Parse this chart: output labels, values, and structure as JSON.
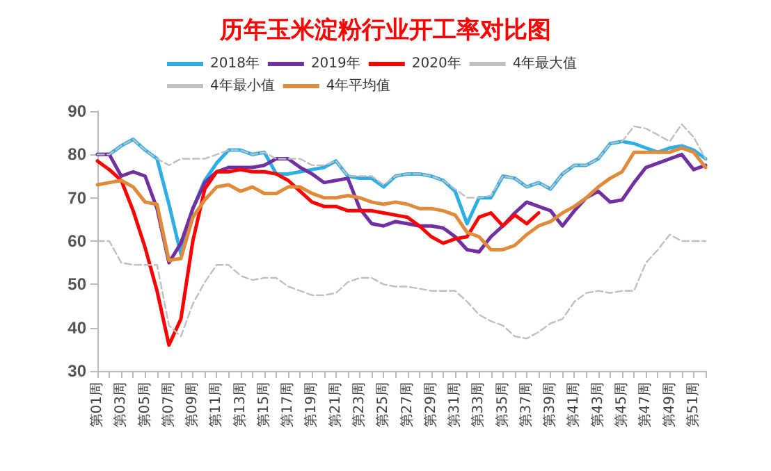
{
  "chart_data": {
    "type": "line",
    "title": "历年玉米淀粉行业开工率对比图",
    "categories": [
      "第01周",
      null,
      "第03周",
      null,
      "第05周",
      null,
      "第07周",
      null,
      "第09周",
      null,
      "第11周",
      null,
      "第13周",
      null,
      "第15周",
      null,
      "第17周",
      null,
      "第19周",
      null,
      "第21周",
      null,
      "第23周",
      null,
      "第25周",
      null,
      "第27周",
      null,
      "第29周",
      null,
      "第31周",
      null,
      "第33周",
      null,
      "第35周",
      null,
      "第37周",
      null,
      "第39周",
      null,
      "第41周",
      null,
      "第43周",
      null,
      "第45周",
      null,
      "第47周",
      null,
      "第49周",
      null,
      "第51周",
      null
    ],
    "series": [
      {
        "name": "2018年",
        "color": "#2eaee6",
        "line_style": "solid",
        "values": [
          80,
          80,
          82,
          83.5,
          81,
          79,
          68.5,
          57,
          67.5,
          74,
          78,
          81,
          81,
          80,
          80.5,
          75.5,
          75.5,
          76,
          76.5,
          77,
          78.5,
          75,
          74.5,
          74.5,
          72.5,
          75,
          75.5,
          75.5,
          75,
          74,
          71.5,
          64,
          70,
          70,
          75,
          74.5,
          72.5,
          73.5,
          72,
          75.5,
          77.5,
          77.5,
          79,
          82.5,
          83,
          82.5,
          81.5,
          80.5,
          81.5,
          82,
          81,
          79
        ]
      },
      {
        "name": "2019年",
        "color": "#7030a0",
        "line_style": "solid",
        "values": [
          80,
          80,
          75,
          76,
          75,
          67.5,
          55,
          59.5,
          67.5,
          73.5,
          76,
          77,
          77,
          77,
          77.5,
          79,
          79,
          77,
          75.5,
          73.5,
          74,
          74.5,
          67.5,
          64,
          63.5,
          64.5,
          64,
          63.5,
          63.5,
          63,
          61,
          58,
          57.5,
          61,
          63.5,
          66.5,
          69,
          68,
          67,
          63.5,
          67,
          70,
          71.5,
          69,
          69.5,
          73.5,
          77,
          78,
          79,
          80,
          76.5,
          77.5
        ]
      },
      {
        "name": "2020年",
        "color": "#ff0000",
        "line_style": "solid",
        "values": [
          78.5,
          76.5,
          74,
          67,
          58.5,
          48.5,
          36,
          42,
          60,
          72,
          76,
          76,
          76.5,
          76,
          76,
          75.5,
          74,
          71.5,
          69,
          68,
          68,
          67,
          67,
          67,
          66.5,
          66,
          65.5,
          63.5,
          61,
          59.5,
          60.5,
          61,
          65.5,
          66.5,
          63.5,
          66,
          64,
          66.5,
          null,
          null,
          null,
          null,
          null,
          null,
          null,
          null,
          null,
          null,
          null,
          null,
          null,
          null
        ]
      },
      {
        "name": "4年最大值",
        "color": "#bfbfbf",
        "line_style": "dashed",
        "values": [
          80,
          80,
          82,
          83.5,
          81,
          79,
          77.5,
          79,
          79,
          79,
          80,
          81,
          81,
          80,
          80.5,
          79,
          79,
          79,
          77.5,
          77.5,
          78.5,
          75,
          75,
          75,
          73,
          75,
          75.5,
          75.5,
          75,
          74,
          72,
          70,
          70,
          70.5,
          75,
          74.5,
          72.5,
          73.5,
          72,
          75.5,
          77.5,
          77.5,
          79,
          82.5,
          83,
          86.5,
          86,
          84.5,
          83,
          87,
          84,
          79
        ]
      },
      {
        "name": "4年最小值",
        "color": "#bfbfbf",
        "line_style": "dashed",
        "values": [
          60,
          60,
          55,
          54.5,
          54.5,
          54.5,
          40.5,
          38,
          45.5,
          50.5,
          54.5,
          54.5,
          52,
          51,
          51.5,
          51.5,
          49.5,
          48.5,
          47.5,
          47.5,
          48,
          50.5,
          51.5,
          51.5,
          50,
          49.5,
          49.5,
          49,
          48.5,
          48.5,
          48.5,
          46,
          43,
          41.5,
          40.5,
          38,
          37.5,
          39,
          41,
          42,
          46,
          48,
          48.5,
          48,
          48.5,
          48.5,
          55,
          58,
          61.5,
          60,
          60,
          60
        ]
      },
      {
        "name": "4年平均值",
        "color": "#e08a3c",
        "line_style": "solid",
        "values": [
          73,
          73.5,
          74,
          72.5,
          69,
          68.5,
          55.5,
          56,
          65.5,
          69.5,
          72.5,
          73,
          71.5,
          72.5,
          71,
          71,
          72.5,
          72.5,
          71,
          70,
          70,
          70.5,
          70,
          69,
          68.5,
          69,
          68.5,
          67.5,
          67.5,
          67,
          66,
          62,
          61,
          58,
          58,
          59,
          61.5,
          63.5,
          64.5,
          66.5,
          68,
          70,
          72.5,
          74.5,
          76,
          80.5,
          80.5,
          80.5,
          80.5,
          81.5,
          80.5,
          77
        ]
      }
    ],
    "ylim": [
      30,
      90
    ],
    "yticks": [
      30,
      40,
      50,
      60,
      70,
      80,
      90
    ],
    "grid": false,
    "legend": "top",
    "marker": "none"
  }
}
